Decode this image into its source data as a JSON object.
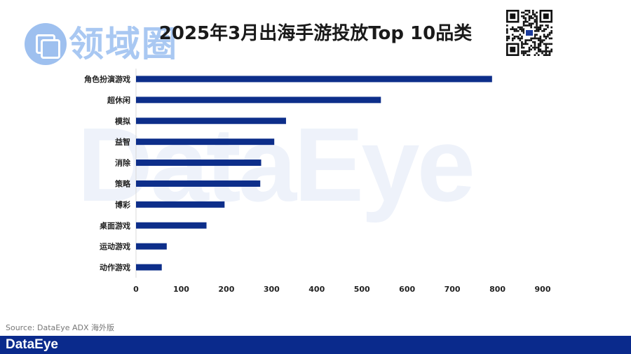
{
  "branding": {
    "watermark": "DataEye",
    "logo_text": "领域圈",
    "footer_logo": "DataEye"
  },
  "title": "2025年3月出海手游投放Top 10品类",
  "source": "Source: DataEye ADX 海外版",
  "colors": {
    "bar": "#0d2e8a",
    "footer": "#0a2a8c",
    "watermark": "#eef2fa"
  },
  "chart_data": {
    "type": "bar",
    "orientation": "horizontal",
    "title": "2025年3月出海手游投放Top 10品类",
    "xlabel": "",
    "ylabel": "",
    "categories": [
      "角色扮演游戏",
      "超休闲",
      "模拟",
      "益智",
      "消除",
      "策略",
      "博彩",
      "桌面游戏",
      "运动游戏",
      "动作游戏"
    ],
    "values": [
      788,
      542,
      332,
      306,
      277,
      275,
      196,
      156,
      68,
      57
    ],
    "xlim": [
      0,
      900
    ],
    "xticks": [
      0,
      100,
      200,
      300,
      400,
      500,
      600,
      700,
      800,
      900
    ],
    "grid": false,
    "legend": "none"
  }
}
